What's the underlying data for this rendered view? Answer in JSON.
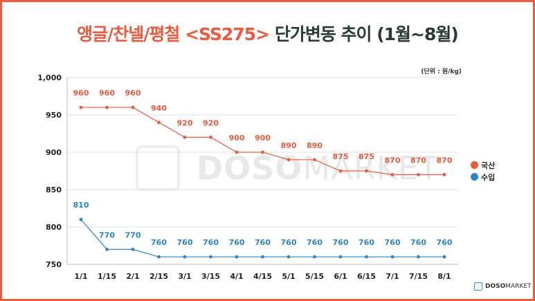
{
  "title": {
    "accent": "앵글/찬넬/평철 <SS275>",
    "rest": "단가변동 추이 (1월~8월)"
  },
  "unit_label": "(단위 : 원/kg)",
  "legend": [
    {
      "label": "국산",
      "color": "#ef5a3c"
    },
    {
      "label": "수입",
      "color": "#2a86c9"
    }
  ],
  "brand": {
    "bold": "DOSO",
    "light": "MARKET"
  },
  "watermark": {
    "bold": "DOSO",
    "light": "MARKET"
  },
  "chart_data": {
    "type": "line",
    "title": "앵글/찬넬/평철 <SS275> 단가변동 추이 (1월~8월)",
    "xlabel": "",
    "ylabel": "(단위 : 원/kg)",
    "ylim": [
      750,
      1000
    ],
    "yticks": [
      750,
      800,
      850,
      900,
      950,
      1000
    ],
    "ytick_labels": [
      "750",
      "800",
      "850",
      "900",
      "950",
      "1,000"
    ],
    "grid": true,
    "legend_position": "right",
    "categories": [
      "1/1",
      "1/15",
      "2/1",
      "2/15",
      "3/1",
      "3/15",
      "4/1",
      "4/15",
      "5/1",
      "5/15",
      "6/1",
      "6/15",
      "7/1",
      "7/15",
      "8/1"
    ],
    "series": [
      {
        "name": "국산",
        "color": "#ef5a3c",
        "values": [
          960,
          960,
          960,
          940,
          920,
          920,
          900,
          900,
          890,
          890,
          875,
          875,
          870,
          870,
          870
        ]
      },
      {
        "name": "수입",
        "color": "#2a86c9",
        "values": [
          810,
          770,
          770,
          760,
          760,
          760,
          760,
          760,
          760,
          760,
          760,
          760,
          760,
          760,
          760
        ]
      }
    ]
  }
}
